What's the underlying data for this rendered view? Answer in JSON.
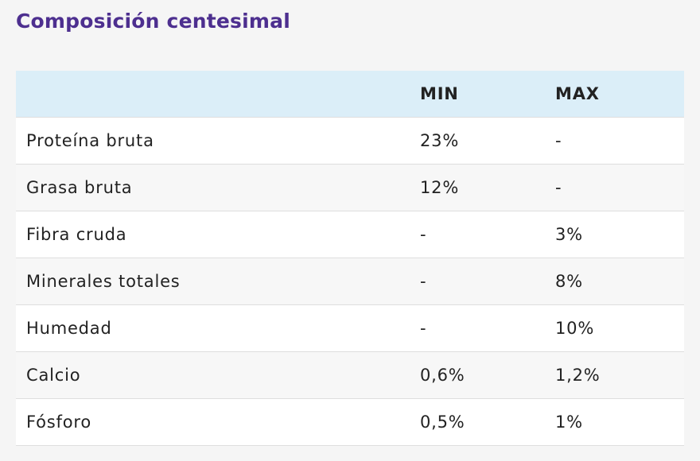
{
  "title": "Composición centesimal",
  "table": {
    "header": [
      "MIN",
      "MAX"
    ],
    "rows": [
      [
        "Proteína bruta",
        "23%",
        "-"
      ],
      [
        "Grasa bruta",
        "12%",
        "-"
      ],
      [
        "Fibra cruda",
        "-",
        "3%"
      ],
      [
        "Minerales totales",
        "-",
        "8%"
      ],
      [
        "Humedad",
        "-",
        "10%"
      ],
      [
        "Calcio",
        "0,6%",
        "1,2%"
      ],
      [
        "Fósforo",
        "0,5%",
        "1%"
      ]
    ]
  }
}
